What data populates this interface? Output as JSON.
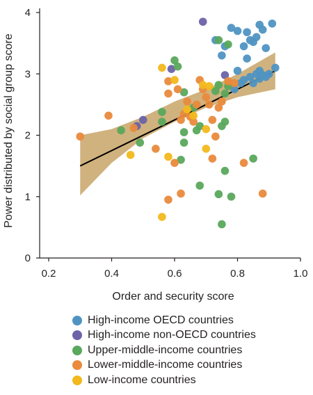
{
  "chart_data": {
    "type": "scatter",
    "xlabel": "Order and security score",
    "ylabel": "Power distributed by social group score",
    "xlim": [
      0.2,
      1.0
    ],
    "ylim": [
      0,
      4.2
    ],
    "xticks": [
      0.2,
      0.4,
      0.6,
      0.8,
      1.0
    ],
    "xtick_labels": [
      "0.2",
      "0.4",
      "0.6",
      "0.8",
      "1.0"
    ],
    "yticks": [
      0,
      1,
      2,
      3,
      4
    ],
    "ytick_labels": [
      "0",
      "1",
      "2",
      "3",
      "4"
    ],
    "regression": {
      "x": [
        0.3,
        0.92
      ],
      "y": [
        1.5,
        3.05
      ],
      "color": "#000000"
    },
    "confidence_band": {
      "x": [
        0.3,
        0.4,
        0.5,
        0.6,
        0.7,
        0.8,
        0.92
      ],
      "upper": [
        2.0,
        2.1,
        2.3,
        2.55,
        2.75,
        3.0,
        3.35
      ],
      "lower": [
        1.02,
        1.55,
        1.95,
        2.22,
        2.45,
        2.62,
        2.75
      ],
      "color": "#c8a468"
    },
    "series": [
      {
        "name": "High-income OECD countries",
        "color": "#4f93c2",
        "points": [
          [
            0.73,
            3.55
          ],
          [
            0.75,
            3.3
          ],
          [
            0.76,
            3.45
          ],
          [
            0.78,
            3.75
          ],
          [
            0.8,
            3.7
          ],
          [
            0.82,
            3.45
          ],
          [
            0.83,
            3.68
          ],
          [
            0.84,
            3.55
          ],
          [
            0.85,
            3.52
          ],
          [
            0.86,
            3.6
          ],
          [
            0.87,
            3.8
          ],
          [
            0.88,
            3.72
          ],
          [
            0.89,
            3.42
          ],
          [
            0.91,
            3.82
          ],
          [
            0.83,
            3.25
          ],
          [
            0.8,
            3.05
          ],
          [
            0.82,
            2.9
          ],
          [
            0.84,
            2.95
          ],
          [
            0.85,
            2.85
          ],
          [
            0.86,
            3.0
          ],
          [
            0.87,
            3.05
          ],
          [
            0.88,
            2.98
          ],
          [
            0.89,
            2.95
          ],
          [
            0.9,
            3.0
          ],
          [
            0.92,
            3.1
          ],
          [
            0.79,
            2.75
          ],
          [
            0.81,
            2.85
          ],
          [
            0.87,
            2.92
          ]
        ]
      },
      {
        "name": "High-income non-OECD countries",
        "color": "#6c63a8",
        "points": [
          [
            0.69,
            3.85
          ],
          [
            0.76,
            2.98
          ],
          [
            0.59,
            3.08
          ],
          [
            0.48,
            2.15
          ],
          [
            0.5,
            2.25
          ]
        ]
      },
      {
        "name": "Upper-middle-income countries",
        "color": "#5aa85c",
        "points": [
          [
            0.6,
            3.22
          ],
          [
            0.61,
            3.12
          ],
          [
            0.74,
            3.55
          ],
          [
            0.77,
            3.48
          ],
          [
            0.74,
            2.82
          ],
          [
            0.77,
            2.8
          ],
          [
            0.76,
            2.68
          ],
          [
            0.73,
            2.72
          ],
          [
            0.56,
            2.38
          ],
          [
            0.56,
            2.22
          ],
          [
            0.63,
            2.7
          ],
          [
            0.66,
            2.45
          ],
          [
            0.63,
            2.05
          ],
          [
            0.63,
            1.88
          ],
          [
            0.67,
            2.08
          ],
          [
            0.68,
            2.15
          ],
          [
            0.75,
            2.15
          ],
          [
            0.76,
            2.22
          ],
          [
            0.43,
            2.08
          ],
          [
            0.49,
            1.88
          ],
          [
            0.62,
            1.6
          ],
          [
            0.68,
            1.18
          ],
          [
            0.74,
            1.04
          ],
          [
            0.76,
            1.42
          ],
          [
            0.78,
            1.0
          ],
          [
            0.75,
            0.55
          ],
          [
            0.85,
            1.62
          ]
        ]
      },
      {
        "name": "Lower-middle-income countries",
        "color": "#e98a3c",
        "points": [
          [
            0.3,
            1.98
          ],
          [
            0.39,
            2.32
          ],
          [
            0.47,
            2.12
          ],
          [
            0.54,
            1.78
          ],
          [
            0.58,
            2.88
          ],
          [
            0.58,
            2.68
          ],
          [
            0.61,
            2.75
          ],
          [
            0.63,
            2.35
          ],
          [
            0.64,
            2.55
          ],
          [
            0.65,
            2.3
          ],
          [
            0.67,
            2.5
          ],
          [
            0.68,
            2.9
          ],
          [
            0.69,
            2.75
          ],
          [
            0.7,
            2.62
          ],
          [
            0.71,
            2.5
          ],
          [
            0.72,
            2.25
          ],
          [
            0.73,
            1.98
          ],
          [
            0.74,
            2.45
          ],
          [
            0.75,
            2.55
          ],
          [
            0.77,
            2.88
          ],
          [
            0.79,
            2.85
          ],
          [
            0.62,
            2.25
          ],
          [
            0.66,
            2.22
          ],
          [
            0.72,
            1.62
          ],
          [
            0.6,
            1.55
          ],
          [
            0.58,
            0.95
          ],
          [
            0.62,
            1.05
          ],
          [
            0.82,
            1.55
          ],
          [
            0.88,
            1.05
          ]
        ]
      },
      {
        "name": "Low-income countries",
        "color": "#f2b81c",
        "points": [
          [
            0.56,
            3.1
          ],
          [
            0.6,
            2.9
          ],
          [
            0.64,
            2.42
          ],
          [
            0.66,
            2.32
          ],
          [
            0.69,
            2.82
          ],
          [
            0.7,
            2.1
          ],
          [
            0.71,
            2.8
          ],
          [
            0.7,
            1.78
          ],
          [
            0.46,
            1.68
          ],
          [
            0.58,
            1.65
          ],
          [
            0.56,
            0.67
          ]
        ]
      }
    ]
  }
}
